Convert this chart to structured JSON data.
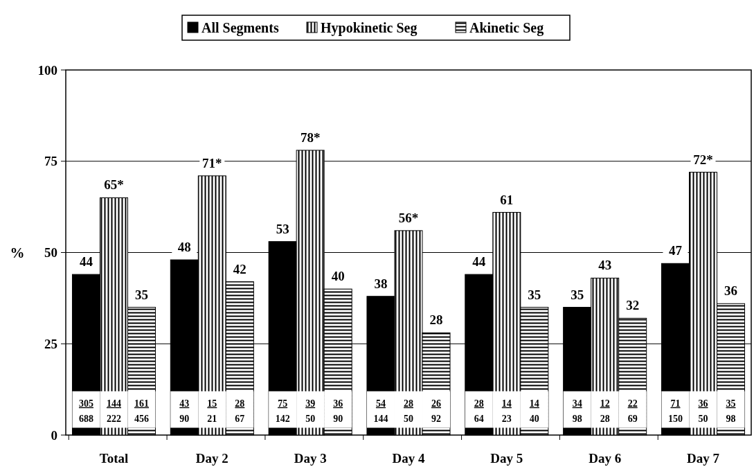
{
  "chart_data": {
    "type": "bar",
    "ylabel": "%",
    "categories": [
      "Total",
      "Day 2",
      "Day 3",
      "Day 4",
      "Day 5",
      "Day 6",
      "Day 7"
    ],
    "series": [
      {
        "name": "All Segments",
        "color": "#000000",
        "values": [
          44,
          48,
          53,
          38,
          44,
          35,
          47
        ],
        "value_labels": [
          "44",
          "48",
          "53",
          "38",
          "44",
          "35",
          "47"
        ]
      },
      {
        "name": "Hypokinetic Seg",
        "color": "#000000",
        "values": [
          65,
          71,
          78,
          56,
          61,
          43,
          72
        ],
        "value_labels": [
          "65*",
          "71*",
          "78*",
          "56*",
          "61",
          "43",
          "72*"
        ]
      },
      {
        "name": "Akinetic Seg",
        "color": "#000000",
        "values": [
          35,
          42,
          40,
          28,
          35,
          32,
          36
        ],
        "value_labels": [
          "35",
          "42",
          "40",
          "28",
          "35",
          "32",
          "36"
        ]
      }
    ],
    "ylim": [
      0,
      100
    ],
    "yticks": [
      0,
      25,
      50,
      75,
      100
    ],
    "grid": "y",
    "legend": "top",
    "annotations": [
      "305",
      "688",
      "144",
      "222",
      "161",
      "456",
      "43",
      "90",
      "15",
      "21",
      "28",
      "67",
      "75",
      "142",
      "39",
      "50",
      "36",
      "90",
      "54",
      "144",
      "28",
      "50",
      "26",
      "92",
      "28",
      "64",
      "14",
      "23",
      "14",
      "40",
      "34",
      "98",
      "12",
      "28",
      "22",
      "69",
      "71",
      "150",
      "36",
      "50",
      "35",
      "98"
    ]
  }
}
